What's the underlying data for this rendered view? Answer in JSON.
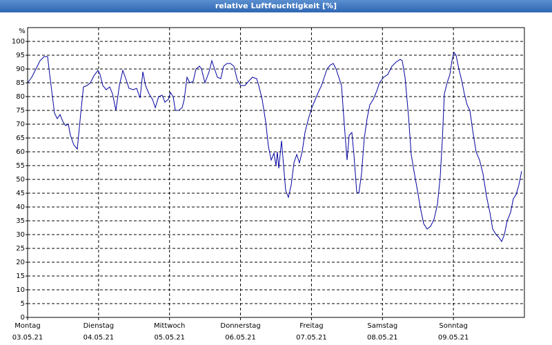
{
  "chart_data": {
    "type": "line",
    "title": "relative Luftfeuchtigkeit [%]",
    "y_unit": "%",
    "xlim": [
      0,
      7
    ],
    "ylim": [
      0,
      105
    ],
    "yticks": [
      0,
      5,
      10,
      15,
      20,
      25,
      30,
      35,
      40,
      45,
      50,
      55,
      60,
      65,
      70,
      75,
      80,
      85,
      90,
      95,
      100
    ],
    "xticks": [
      {
        "value": 0,
        "label": "Montag"
      },
      {
        "value": 1,
        "label": "Dienstag"
      },
      {
        "value": 2,
        "label": "Mittwoch"
      },
      {
        "value": 3,
        "label": "Donnerstag"
      },
      {
        "value": 4,
        "label": "Freitag"
      },
      {
        "value": 5,
        "label": "Samstag"
      },
      {
        "value": 6,
        "label": "Sonntag"
      }
    ],
    "xtick_dates": [
      "03.05.21",
      "04.05.21",
      "05.05.21",
      "06.05.21",
      "07.05.21",
      "08.05.21",
      "09.05.21"
    ],
    "grid": true,
    "series": [
      {
        "color": "#0000a0",
        "x": [
          0,
          0.058,
          0.117,
          0.175,
          0.233,
          0.282,
          0.311,
          0.35,
          0.379,
          0.418,
          0.457,
          0.496,
          0.535,
          0.574,
          0.603,
          0.651,
          0.7,
          0.749,
          0.787,
          0.836,
          0.885,
          0.933,
          0.992,
          1.021,
          1.06,
          1.108,
          1.157,
          1.196,
          1.244,
          1.293,
          1.342,
          1.39,
          1.429,
          1.487,
          1.536,
          1.585,
          1.624,
          1.662,
          1.711,
          1.76,
          1.799,
          1.847,
          1.896,
          1.935,
          1.983,
          2.012,
          2.051,
          2.081,
          2.129,
          2.178,
          2.207,
          2.246,
          2.285,
          2.333,
          2.372,
          2.421,
          2.45,
          2.499,
          2.557,
          2.596,
          2.635,
          2.674,
          2.722,
          2.761,
          2.81,
          2.858,
          2.907,
          2.955,
          3.004,
          3.062,
          3.111,
          3.169,
          3.228,
          3.257,
          3.305,
          3.354,
          3.393,
          3.432,
          3.471,
          3.5,
          3.519,
          3.539,
          3.578,
          3.607,
          3.636,
          3.675,
          3.714,
          3.753,
          3.792,
          3.83,
          3.869,
          3.908,
          3.957,
          4.005,
          4.054,
          4.103,
          4.141,
          4.18,
          4.219,
          4.268,
          4.307,
          4.346,
          4.385,
          4.423,
          4.462,
          4.501,
          4.531,
          4.569,
          4.598,
          4.637,
          4.667,
          4.705,
          4.744,
          4.783,
          4.822,
          4.871,
          4.919,
          4.958,
          5.017,
          5.075,
          5.133,
          5.192,
          5.25,
          5.279,
          5.318,
          5.367,
          5.405,
          5.444,
          5.493,
          5.532,
          5.58,
          5.629,
          5.678,
          5.726,
          5.775,
          5.814,
          5.843,
          5.872,
          5.911,
          5.95,
          5.979,
          6.008,
          6.037,
          6.076,
          6.115,
          6.154,
          6.193,
          6.232,
          6.27,
          6.319,
          6.368,
          6.417,
          6.465,
          6.514,
          6.553,
          6.601,
          6.64,
          6.679,
          6.718,
          6.757,
          6.805,
          6.844,
          6.883,
          6.922,
          6.961
        ],
        "values": [
          85,
          87,
          90,
          93,
          94.5,
          94.5,
          88,
          80,
          74,
          72,
          73.5,
          71,
          69.5,
          70,
          66,
          62.5,
          61,
          74,
          83.5,
          84,
          85,
          87.5,
          89.5,
          88,
          84,
          82.5,
          83.5,
          81,
          75,
          84,
          89.5,
          86,
          83,
          82.5,
          83,
          79.5,
          89,
          84,
          81,
          79,
          76,
          80,
          80.5,
          78,
          79,
          81.5,
          80,
          75,
          75,
          76,
          79,
          87,
          85,
          85.5,
          90,
          91,
          90,
          85,
          89,
          93,
          90,
          87,
          86.5,
          91,
          92,
          92,
          91,
          86,
          84,
          84,
          85.5,
          87,
          86.5,
          84,
          79,
          71,
          62,
          57,
          59.5,
          55,
          60,
          54,
          64,
          55,
          46,
          43.5,
          48,
          56,
          59,
          56,
          60,
          67,
          72,
          76,
          79,
          82,
          84,
          87,
          90,
          91.5,
          92,
          90,
          87,
          84,
          70,
          57,
          66,
          67,
          59,
          45.5,
          45,
          52,
          65,
          72,
          77,
          79,
          82,
          85,
          87,
          88,
          91,
          92.5,
          93.5,
          93,
          87,
          73,
          59,
          53,
          46,
          40,
          34,
          32,
          33,
          35.5,
          41,
          51,
          64,
          81,
          85,
          88,
          93,
          96,
          95,
          90,
          86,
          81,
          77,
          75,
          68,
          60,
          57,
          52,
          44,
          38,
          32,
          30,
          29,
          27.5,
          30,
          35,
          38,
          43,
          44.5,
          48,
          53
        ]
      }
    ]
  }
}
